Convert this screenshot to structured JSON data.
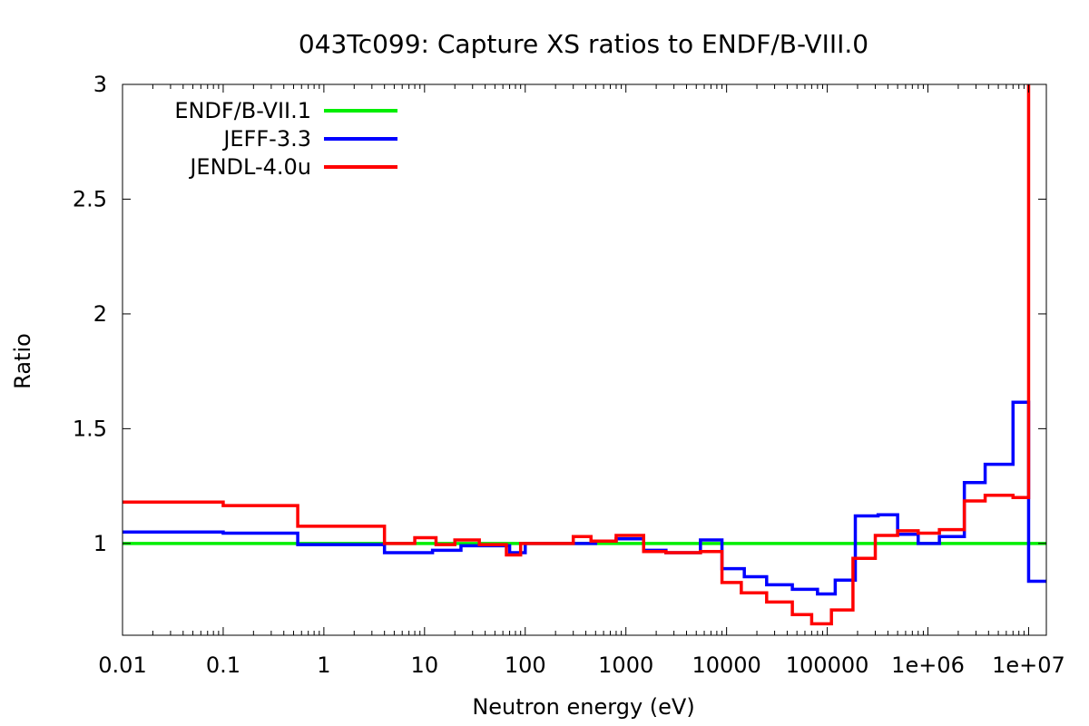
{
  "chart_data": {
    "type": "line",
    "title": "043Tc099: Capture XS ratios to ENDF/B-VIII.0",
    "xlabel": "Neutron energy (eV)",
    "ylabel": "Ratio",
    "xscale": "log",
    "xlim": [
      0.01,
      15000000
    ],
    "ylim": [
      0.6,
      3
    ],
    "xticks": [
      {
        "value": 0.01,
        "label": "0.01"
      },
      {
        "value": 0.1,
        "label": "0.1"
      },
      {
        "value": 1,
        "label": "1"
      },
      {
        "value": 10,
        "label": "10"
      },
      {
        "value": 100,
        "label": "100"
      },
      {
        "value": 1000,
        "label": "1000"
      },
      {
        "value": 10000,
        "label": "10000"
      },
      {
        "value": 100000,
        "label": "100000"
      },
      {
        "value": 1000000,
        "label": "1e+06"
      },
      {
        "value": 10000000,
        "label": "1e+07"
      }
    ],
    "yticks": [
      {
        "value": 1,
        "label": "1"
      },
      {
        "value": 1.5,
        "label": "1.5"
      },
      {
        "value": 2,
        "label": "2"
      },
      {
        "value": 2.5,
        "label": "2.5"
      },
      {
        "value": 3,
        "label": "3"
      }
    ],
    "grid": false,
    "legend_position": "top-left",
    "series": [
      {
        "name": "ENDF/B-VII.1",
        "color": "#00ee00",
        "step": true,
        "x": [
          0.01,
          15000000
        ],
        "y": [
          1.0,
          1.0
        ]
      },
      {
        "name": "JEFF-3.3",
        "color": "#0000ff",
        "step": true,
        "x": [
          0.01,
          0.1,
          0.55,
          4,
          12,
          23,
          70,
          100,
          300,
          500,
          800,
          1500,
          2500,
          5500,
          9000,
          15000,
          25000,
          45000,
          80000,
          120000,
          190000,
          320000,
          500000,
          800000,
          1300000,
          2300000,
          3700000,
          7000000,
          10000000,
          15000000
        ],
        "y": [
          1.05,
          1.045,
          0.995,
          0.96,
          0.97,
          0.99,
          0.96,
          1.0,
          1.0,
          1.01,
          1.02,
          0.97,
          0.96,
          1.015,
          0.89,
          0.855,
          0.82,
          0.8,
          0.78,
          0.84,
          1.12,
          1.125,
          1.04,
          1.0,
          1.03,
          1.265,
          1.345,
          1.615,
          0.835,
          0.835
        ]
      },
      {
        "name": "JENDL-4.0u",
        "color": "#ff0000",
        "step": true,
        "x": [
          0.01,
          0.1,
          0.55,
          4,
          8,
          13,
          20,
          35,
          65,
          90,
          300,
          450,
          800,
          1500,
          2500,
          5500,
          9000,
          14000,
          25000,
          45000,
          70000,
          110000,
          180000,
          300000,
          500000,
          800000,
          1300000,
          2300000,
          3700000,
          7000000,
          10000000
        ],
        "y": [
          1.18,
          1.165,
          1.075,
          1.0,
          1.025,
          0.995,
          1.015,
          0.995,
          0.95,
          1.0,
          1.03,
          1.01,
          1.035,
          0.965,
          0.96,
          0.965,
          0.83,
          0.785,
          0.745,
          0.69,
          0.65,
          0.71,
          0.935,
          1.035,
          1.055,
          1.045,
          1.06,
          1.185,
          1.21,
          1.2,
          3.0
        ]
      }
    ]
  }
}
